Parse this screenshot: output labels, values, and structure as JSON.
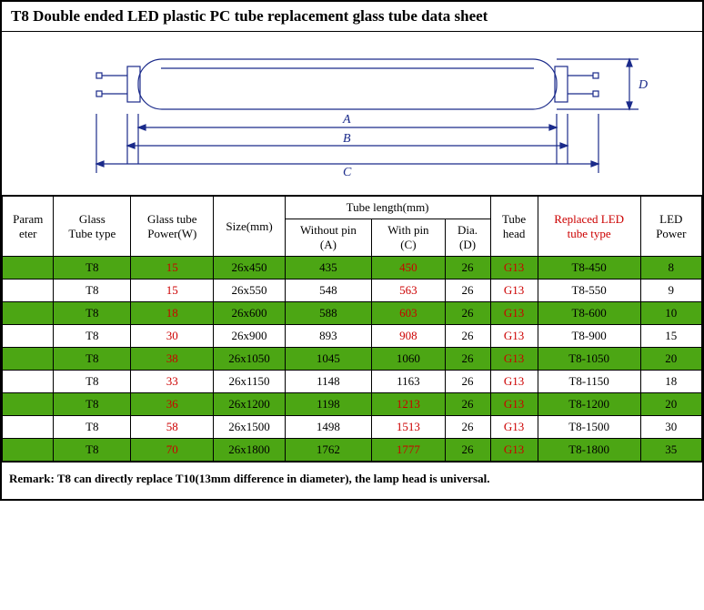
{
  "title": "T8 Double ended LED plastic PC tube replacement glass tube data sheet",
  "diagram": {
    "stroke": "#1a2a8a",
    "labelA": "A",
    "labelB": "B",
    "labelC": "C",
    "labelD": "D"
  },
  "colors": {
    "row_green": "#4ca614",
    "red_text": "#cc0000",
    "border": "#000000",
    "background": "#ffffff"
  },
  "headers": {
    "param": "Param\neter",
    "glass_type": "Glass\nTube type",
    "glass_power": "Glass tube\nPower(W)",
    "size": "Size(mm)",
    "tube_length": "Tube length(mm)",
    "without_pin": "Without pin\n(A)",
    "with_pin": "With pin\n(C)",
    "dia": "Dia.\n(D)",
    "tube_head": "Tube\nhead",
    "replaced": "Replaced LED\ntube type",
    "led_power": "LED\nPower"
  },
  "col_widths": [
    "52",
    "78",
    "84",
    "72",
    "88",
    "74",
    "46",
    "48",
    "104",
    "62"
  ],
  "rows": [
    {
      "green": true,
      "glass_type": "T8",
      "glass_power": "15",
      "size": "26x450",
      "without_pin": "435",
      "with_pin": "450",
      "dia": "26",
      "head": "G13",
      "replaced": "T8-450",
      "led_power": "8",
      "red": {
        "glass_power": true,
        "with_pin": true,
        "head": true
      }
    },
    {
      "green": false,
      "glass_type": "T8",
      "glass_power": "15",
      "size": "26x550",
      "without_pin": "548",
      "with_pin": "563",
      "dia": "26",
      "head": "G13",
      "replaced": "T8-550",
      "led_power": "9",
      "red": {
        "glass_power": true,
        "with_pin": true,
        "head": true
      }
    },
    {
      "green": true,
      "glass_type": "T8",
      "glass_power": "18",
      "size": "26x600",
      "without_pin": "588",
      "with_pin": "603",
      "dia": "26",
      "head": "G13",
      "replaced": "T8-600",
      "led_power": "10",
      "red": {
        "glass_power": true,
        "with_pin": true,
        "head": true
      }
    },
    {
      "green": false,
      "glass_type": "T8",
      "glass_power": "30",
      "size": "26x900",
      "without_pin": "893",
      "with_pin": "908",
      "dia": "26",
      "head": "G13",
      "replaced": "T8-900",
      "led_power": "15",
      "red": {
        "glass_power": true,
        "with_pin": true,
        "head": true
      }
    },
    {
      "green": true,
      "glass_type": "T8",
      "glass_power": "38",
      "size": "26x1050",
      "without_pin": "1045",
      "with_pin": "1060",
      "dia": "26",
      "head": "G13",
      "replaced": "T8-1050",
      "led_power": "20",
      "red": {
        "glass_power": true,
        "head": true
      }
    },
    {
      "green": false,
      "glass_type": "T8",
      "glass_power": "33",
      "size": "26x1150",
      "without_pin": "1148",
      "with_pin": "1163",
      "dia": "26",
      "head": "G13",
      "replaced": "T8-1150",
      "led_power": "18",
      "red": {
        "glass_power": true,
        "head": true
      }
    },
    {
      "green": true,
      "glass_type": "T8",
      "glass_power": "36",
      "size": "26x1200",
      "without_pin": "1198",
      "with_pin": "1213",
      "dia": "26",
      "head": "G13",
      "replaced": "T8-1200",
      "led_power": "20",
      "red": {
        "glass_power": true,
        "with_pin": true,
        "head": true
      }
    },
    {
      "green": false,
      "glass_type": "T8",
      "glass_power": "58",
      "size": "26x1500",
      "without_pin": "1498",
      "with_pin": "1513",
      "dia": "26",
      "head": "G13",
      "replaced": "T8-1500",
      "led_power": "30",
      "red": {
        "glass_power": true,
        "with_pin": true,
        "head": true
      }
    },
    {
      "green": true,
      "glass_type": "T8",
      "glass_power": "70",
      "size": "26x1800",
      "without_pin": "1762",
      "with_pin": "1777",
      "dia": "26",
      "head": "G13",
      "replaced": "T8-1800",
      "led_power": "35",
      "red": {
        "glass_power": true,
        "with_pin": true,
        "head": true
      }
    }
  ],
  "remark": "Remark: T8 can directly replace T10(13mm difference in diameter), the lamp head is universal."
}
